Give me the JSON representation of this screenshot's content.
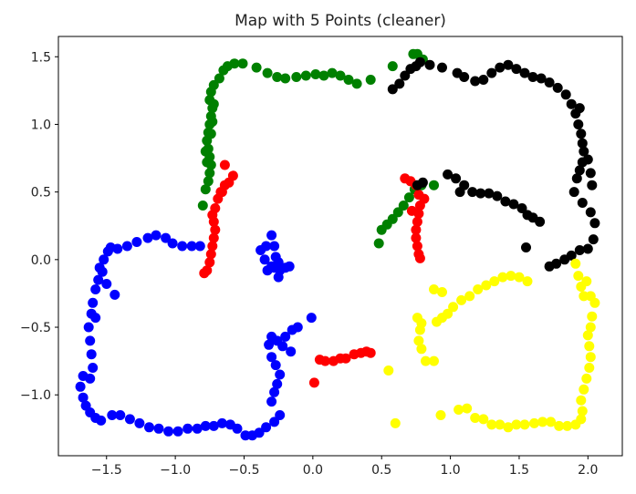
{
  "chart_data": {
    "type": "scatter",
    "title": "Map with 5 Points (cleaner)",
    "xlabel": "",
    "ylabel": "",
    "xlim": [
      -1.85,
      2.25
    ],
    "ylim": [
      -1.45,
      1.65
    ],
    "xticks": [
      -1.5,
      -1.0,
      -0.5,
      0.0,
      0.5,
      1.0,
      1.5,
      2.0
    ],
    "xtick_labels": [
      "−1.5",
      "−1.0",
      "−0.5",
      "0.0",
      "0.5",
      "1.0",
      "1.5",
      "2.0"
    ],
    "yticks": [
      -1.0,
      -0.5,
      0.0,
      0.5,
      1.0,
      1.5
    ],
    "ytick_labels": [
      "−1.0",
      "−0.5",
      "0.0",
      "0.5",
      "1.0",
      "1.5"
    ],
    "grid": false,
    "legend": false,
    "series": [
      {
        "color": "#0000ff",
        "points": [
          [
            -1.47,
            0.09
          ],
          [
            -1.42,
            0.08
          ],
          [
            -1.35,
            0.1
          ],
          [
            -1.28,
            0.13
          ],
          [
            -1.2,
            0.16
          ],
          [
            -1.14,
            0.18
          ],
          [
            -1.07,
            0.16
          ],
          [
            -1.02,
            0.12
          ],
          [
            -0.95,
            0.1
          ],
          [
            -0.88,
            0.1
          ],
          [
            -0.82,
            0.1
          ],
          [
            -1.49,
            0.06
          ],
          [
            -1.52,
            0.0
          ],
          [
            -1.55,
            -0.06
          ],
          [
            -1.56,
            -0.15
          ],
          [
            -1.58,
            -0.22
          ],
          [
            -1.6,
            -0.32
          ],
          [
            -1.61,
            -0.4
          ],
          [
            -1.63,
            -0.5
          ],
          [
            -1.62,
            -0.6
          ],
          [
            -1.61,
            -0.7
          ],
          [
            -1.6,
            -0.8
          ],
          [
            -1.62,
            -0.88
          ],
          [
            -1.67,
            -0.86
          ],
          [
            -1.69,
            -0.94
          ],
          [
            -1.67,
            -1.02
          ],
          [
            -1.65,
            -1.08
          ],
          [
            -1.62,
            -1.13
          ],
          [
            -1.58,
            -1.17
          ],
          [
            -1.54,
            -1.19
          ],
          [
            -1.46,
            -1.15
          ],
          [
            -1.4,
            -1.15
          ],
          [
            -1.33,
            -1.18
          ],
          [
            -1.26,
            -1.21
          ],
          [
            -1.19,
            -1.24
          ],
          [
            -1.12,
            -1.25
          ],
          [
            -1.05,
            -1.27
          ],
          [
            -0.98,
            -1.27
          ],
          [
            -0.91,
            -1.25
          ],
          [
            -0.84,
            -1.25
          ],
          [
            -0.78,
            -1.23
          ],
          [
            -0.72,
            -1.23
          ],
          [
            -0.66,
            -1.21
          ],
          [
            -0.6,
            -1.22
          ],
          [
            -0.55,
            -1.25
          ],
          [
            -0.49,
            -1.3
          ],
          [
            -0.44,
            -1.3
          ],
          [
            -0.39,
            -1.28
          ],
          [
            -0.34,
            -1.24
          ],
          [
            -0.28,
            -1.2
          ],
          [
            -0.24,
            -1.15
          ],
          [
            -0.3,
            -1.05
          ],
          [
            -0.28,
            -0.98
          ],
          [
            -0.26,
            -0.92
          ],
          [
            -0.24,
            -0.85
          ],
          [
            -0.27,
            -0.78
          ],
          [
            -0.3,
            -0.72
          ],
          [
            -0.32,
            -0.63
          ],
          [
            -0.3,
            -0.57
          ],
          [
            -0.26,
            -0.6
          ],
          [
            -0.2,
            -0.57
          ],
          [
            -0.15,
            -0.52
          ],
          [
            -0.11,
            -0.5
          ],
          [
            -0.01,
            -0.43
          ],
          [
            -0.22,
            -0.64
          ],
          [
            -0.16,
            -0.68
          ],
          [
            -0.3,
            0.18
          ],
          [
            -0.28,
            0.1
          ],
          [
            -0.27,
            0.02
          ],
          [
            -0.25,
            -0.02
          ],
          [
            -0.28,
            -0.06
          ],
          [
            -0.3,
            -0.05
          ],
          [
            -0.35,
            0.0
          ],
          [
            -0.38,
            0.07
          ],
          [
            -0.34,
            0.1
          ],
          [
            -0.24,
            -0.08
          ],
          [
            -0.2,
            -0.06
          ],
          [
            -0.17,
            -0.05
          ],
          [
            -0.25,
            -0.13
          ],
          [
            -0.33,
            -0.08
          ],
          [
            -1.44,
            -0.26
          ],
          [
            -1.5,
            -0.18
          ],
          [
            -1.58,
            -0.43
          ],
          [
            -1.53,
            -0.09
          ]
        ]
      },
      {
        "color": "#008000",
        "points": [
          [
            -0.8,
            0.4
          ],
          [
            -0.78,
            0.52
          ],
          [
            -0.76,
            0.58
          ],
          [
            -0.75,
            0.64
          ],
          [
            -0.74,
            0.7
          ],
          [
            -0.75,
            0.76
          ],
          [
            -0.76,
            0.82
          ],
          [
            -0.77,
            0.88
          ],
          [
            -0.76,
            0.94
          ],
          [
            -0.75,
            1.0
          ],
          [
            -0.74,
            1.06
          ],
          [
            -0.73,
            1.12
          ],
          [
            -0.75,
            1.18
          ],
          [
            -0.74,
            1.24
          ],
          [
            -0.72,
            1.29
          ],
          [
            -0.68,
            1.34
          ],
          [
            -0.65,
            1.4
          ],
          [
            -0.62,
            1.43
          ],
          [
            -0.57,
            1.45
          ],
          [
            -0.51,
            1.45
          ],
          [
            -0.41,
            1.42
          ],
          [
            -0.33,
            1.38
          ],
          [
            -0.26,
            1.35
          ],
          [
            -0.2,
            1.34
          ],
          [
            -0.12,
            1.35
          ],
          [
            -0.05,
            1.36
          ],
          [
            0.02,
            1.37
          ],
          [
            0.08,
            1.36
          ],
          [
            0.14,
            1.38
          ],
          [
            0.2,
            1.36
          ],
          [
            0.26,
            1.33
          ],
          [
            0.32,
            1.3
          ],
          [
            0.42,
            1.33
          ],
          [
            0.58,
            1.43
          ],
          [
            0.73,
            1.52
          ],
          [
            0.76,
            1.52
          ],
          [
            0.8,
            1.48
          ],
          [
            0.48,
            0.12
          ],
          [
            0.5,
            0.22
          ],
          [
            0.54,
            0.26
          ],
          [
            0.58,
            0.3
          ],
          [
            0.62,
            0.35
          ],
          [
            0.66,
            0.4
          ],
          [
            0.7,
            0.46
          ],
          [
            0.74,
            0.52
          ],
          [
            0.79,
            0.55
          ],
          [
            0.88,
            0.55
          ],
          [
            -0.77,
            0.72
          ],
          [
            -0.78,
            0.8
          ],
          [
            -0.74,
            0.93
          ],
          [
            -0.73,
            1.02
          ],
          [
            -0.72,
            1.15
          ]
        ]
      },
      {
        "color": "#ff0000",
        "points": [
          [
            -0.64,
            0.7
          ],
          [
            -0.64,
            0.55
          ],
          [
            -0.66,
            0.5
          ],
          [
            -0.69,
            0.45
          ],
          [
            -0.71,
            0.38
          ],
          [
            -0.73,
            0.33
          ],
          [
            -0.72,
            0.28
          ],
          [
            -0.71,
            0.22
          ],
          [
            -0.72,
            0.16
          ],
          [
            -0.73,
            0.1
          ],
          [
            -0.74,
            0.04
          ],
          [
            -0.75,
            -0.02
          ],
          [
            -0.77,
            -0.08
          ],
          [
            -0.79,
            -0.1
          ],
          [
            -0.61,
            0.57
          ],
          [
            -0.58,
            0.62
          ],
          [
            -0.67,
            0.5
          ],
          [
            0.67,
            0.6
          ],
          [
            0.71,
            0.58
          ],
          [
            0.75,
            0.55
          ],
          [
            0.77,
            0.48
          ],
          [
            0.78,
            0.4
          ],
          [
            0.77,
            0.34
          ],
          [
            0.76,
            0.28
          ],
          [
            0.75,
            0.22
          ],
          [
            0.75,
            0.16
          ],
          [
            0.76,
            0.1
          ],
          [
            0.77,
            0.04
          ],
          [
            0.78,
            0.01
          ],
          [
            0.01,
            -0.91
          ],
          [
            0.05,
            -0.74
          ],
          [
            0.09,
            -0.75
          ],
          [
            0.15,
            -0.75
          ],
          [
            0.2,
            -0.73
          ],
          [
            0.24,
            -0.73
          ],
          [
            0.3,
            -0.7
          ],
          [
            0.35,
            -0.69
          ],
          [
            0.39,
            -0.68
          ],
          [
            0.42,
            -0.69
          ],
          [
            0.81,
            0.45
          ],
          [
            0.72,
            0.36
          ]
        ]
      },
      {
        "color": "#000000",
        "points": [
          [
            0.58,
            1.26
          ],
          [
            0.63,
            1.3
          ],
          [
            0.67,
            1.36
          ],
          [
            0.71,
            1.41
          ],
          [
            0.75,
            1.43
          ],
          [
            0.78,
            1.46
          ],
          [
            0.85,
            1.44
          ],
          [
            0.94,
            1.42
          ],
          [
            1.05,
            1.38
          ],
          [
            1.1,
            1.35
          ],
          [
            1.18,
            1.32
          ],
          [
            1.24,
            1.33
          ],
          [
            1.3,
            1.38
          ],
          [
            1.36,
            1.42
          ],
          [
            1.42,
            1.44
          ],
          [
            1.48,
            1.41
          ],
          [
            1.54,
            1.38
          ],
          [
            1.6,
            1.35
          ],
          [
            1.66,
            1.34
          ],
          [
            1.72,
            1.31
          ],
          [
            1.78,
            1.27
          ],
          [
            1.84,
            1.22
          ],
          [
            1.88,
            1.15
          ],
          [
            1.91,
            1.08
          ],
          [
            1.93,
            1.0
          ],
          [
            1.95,
            0.93
          ],
          [
            1.96,
            0.86
          ],
          [
            1.97,
            0.8
          ],
          [
            1.96,
            0.72
          ],
          [
            1.94,
            0.66
          ],
          [
            1.92,
            0.6
          ],
          [
            1.9,
            0.5
          ],
          [
            1.96,
            0.42
          ],
          [
            2.02,
            0.35
          ],
          [
            2.05,
            0.27
          ],
          [
            2.04,
            0.15
          ],
          [
            2.0,
            0.08
          ],
          [
            1.94,
            0.07
          ],
          [
            1.88,
            0.03
          ],
          [
            1.83,
            0.0
          ],
          [
            1.77,
            -0.03
          ],
          [
            1.72,
            -0.05
          ],
          [
            0.98,
            0.63
          ],
          [
            1.04,
            0.6
          ],
          [
            1.1,
            0.55
          ],
          [
            1.16,
            0.5
          ],
          [
            1.22,
            0.49
          ],
          [
            1.28,
            0.49
          ],
          [
            1.34,
            0.47
          ],
          [
            1.4,
            0.43
          ],
          [
            1.46,
            0.41
          ],
          [
            1.52,
            0.38
          ],
          [
            1.56,
            0.33
          ],
          [
            1.6,
            0.31
          ],
          [
            1.65,
            0.28
          ],
          [
            1.55,
            0.09
          ],
          [
            0.76,
            0.55
          ],
          [
            0.8,
            0.57
          ],
          [
            1.07,
            0.5
          ],
          [
            1.94,
            1.12
          ],
          [
            2.03,
            0.55
          ],
          [
            2.02,
            0.64
          ],
          [
            2.0,
            0.74
          ]
        ]
      },
      {
        "color": "#ffff00",
        "points": [
          [
            1.91,
            -0.03
          ],
          [
            1.93,
            -0.12
          ],
          [
            1.95,
            -0.2
          ],
          [
            1.97,
            -0.27
          ],
          [
            2.02,
            -0.27
          ],
          [
            2.05,
            -0.32
          ],
          [
            2.03,
            -0.42
          ],
          [
            2.02,
            -0.5
          ],
          [
            2.0,
            -0.56
          ],
          [
            2.01,
            -0.64
          ],
          [
            2.02,
            -0.72
          ],
          [
            2.01,
            -0.8
          ],
          [
            1.99,
            -0.88
          ],
          [
            1.97,
            -0.96
          ],
          [
            1.95,
            -1.04
          ],
          [
            1.96,
            -1.12
          ],
          [
            1.95,
            -1.18
          ],
          [
            1.91,
            -1.22
          ],
          [
            1.85,
            -1.23
          ],
          [
            1.79,
            -1.23
          ],
          [
            1.73,
            -1.2
          ],
          [
            1.67,
            -1.2
          ],
          [
            1.61,
            -1.21
          ],
          [
            1.54,
            -1.22
          ],
          [
            1.48,
            -1.22
          ],
          [
            1.42,
            -1.24
          ],
          [
            1.36,
            -1.22
          ],
          [
            1.3,
            -1.22
          ],
          [
            1.24,
            -1.18
          ],
          [
            1.18,
            -1.17
          ],
          [
            1.12,
            -1.1
          ],
          [
            1.06,
            -1.11
          ],
          [
            0.6,
            -1.21
          ],
          [
            0.93,
            -1.15
          ],
          [
            0.55,
            -0.82
          ],
          [
            0.76,
            -0.43
          ],
          [
            0.79,
            -0.47
          ],
          [
            0.78,
            -0.52
          ],
          [
            0.77,
            -0.6
          ],
          [
            0.79,
            -0.66
          ],
          [
            0.82,
            -0.75
          ],
          [
            0.88,
            -0.75
          ],
          [
            0.9,
            -0.46
          ],
          [
            0.94,
            -0.43
          ],
          [
            0.98,
            -0.4
          ],
          [
            1.02,
            -0.35
          ],
          [
            1.08,
            -0.3
          ],
          [
            1.14,
            -0.27
          ],
          [
            1.2,
            -0.22
          ],
          [
            1.26,
            -0.19
          ],
          [
            1.32,
            -0.16
          ],
          [
            1.38,
            -0.13
          ],
          [
            1.44,
            -0.12
          ],
          [
            1.5,
            -0.13
          ],
          [
            1.56,
            -0.16
          ],
          [
            0.88,
            -0.22
          ],
          [
            0.94,
            -0.24
          ],
          [
            1.99,
            -0.16
          ]
        ]
      }
    ]
  }
}
